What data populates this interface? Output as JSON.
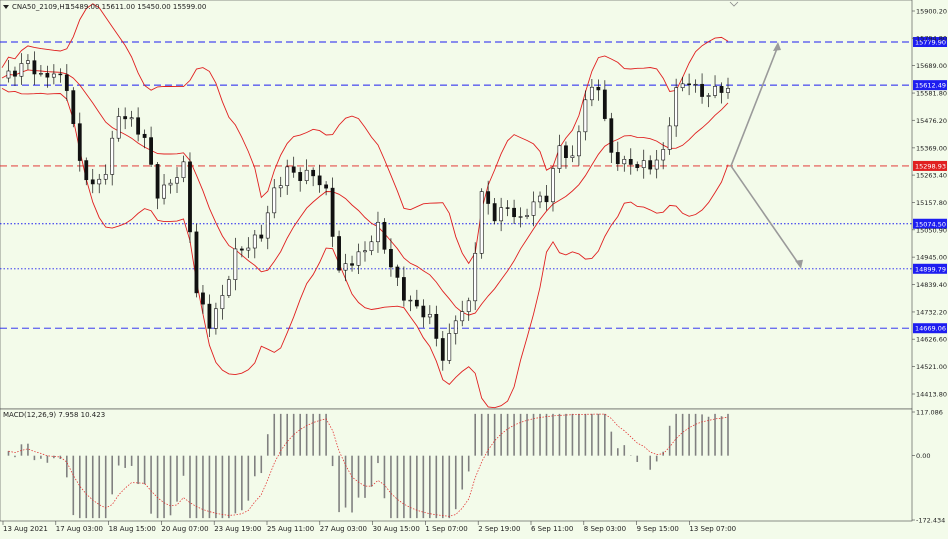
{
  "header": {
    "symbol_line": "CNA50_2109,H1",
    "ohlc": "15489.00 15611.00 15450.00 15599.00"
  },
  "macd": {
    "label": "MACD(12,26,9) 7.958 10.423",
    "y_labels": [
      "117.086",
      "0.00",
      "-172.434"
    ]
  },
  "price_axis": {
    "labels": [
      "15900.20",
      "15794.80",
      "15689.00",
      "15581.80",
      "15476.20",
      "15369.00",
      "15263.40",
      "15157.80",
      "15050.90",
      "14945.00",
      "14839.40",
      "14732.20",
      "14626.60",
      "14521.00",
      "14413.80"
    ]
  },
  "levels": [
    {
      "value": "15779.90",
      "color": "#1d1df0",
      "style": "dashed"
    },
    {
      "value": "15612.49",
      "color": "#1d1df0",
      "style": "dashed"
    },
    {
      "value": "15298.93",
      "color": "#e02020",
      "style": "dashed"
    },
    {
      "value": "15074.50",
      "color": "#1d1df0",
      "style": "dotted"
    },
    {
      "value": "14899.79",
      "color": "#1d1df0",
      "style": "dotted"
    },
    {
      "value": "14669.06",
      "color": "#1d1df0",
      "style": "dashed"
    }
  ],
  "time_axis": {
    "labels": [
      "13 Aug 2021",
      "17 Aug 03:00",
      "18 Aug 15:00",
      "20 Aug 07:00",
      "23 Aug 19:00",
      "25 Aug 11:00",
      "27 Aug 03:00",
      "30 Aug 15:00",
      "1 Sep 07:00",
      "2 Sep 19:00",
      "6 Sep 11:00",
      "8 Sep 03:00",
      "9 Sep 15:00",
      "13 Sep 07:00"
    ]
  },
  "chart_data": {
    "type": "candlestick",
    "symbol": "CNA50_2109",
    "timeframe": "H1",
    "ylim": [
      14413.8,
      15900.2
    ],
    "price_path": [
      [
        0,
        15640
      ],
      [
        2,
        15655
      ],
      [
        4,
        15700
      ],
      [
        6,
        15650
      ],
      [
        8,
        15670
      ],
      [
        10,
        15600
      ],
      [
        12,
        15300
      ],
      [
        14,
        15220
      ],
      [
        16,
        15290
      ],
      [
        18,
        15500
      ],
      [
        20,
        15460
      ],
      [
        22,
        15400
      ],
      [
        24,
        15200
      ],
      [
        26,
        15240
      ],
      [
        28,
        15290
      ],
      [
        30,
        14800
      ],
      [
        32,
        14690
      ],
      [
        34,
        14800
      ],
      [
        36,
        14960
      ],
      [
        38,
        14980
      ],
      [
        40,
        15030
      ],
      [
        42,
        15210
      ],
      [
        44,
        15290
      ],
      [
        46,
        15250
      ],
      [
        48,
        15260
      ],
      [
        50,
        15200
      ],
      [
        52,
        14900
      ],
      [
        54,
        14930
      ],
      [
        56,
        14960
      ],
      [
        58,
        15060
      ],
      [
        60,
        14920
      ],
      [
        62,
        14800
      ],
      [
        64,
        14740
      ],
      [
        66,
        14700
      ],
      [
        68,
        14560
      ],
      [
        70,
        14720
      ],
      [
        72,
        14760
      ],
      [
        74,
        15180
      ],
      [
        76,
        15100
      ],
      [
        78,
        15150
      ],
      [
        80,
        15090
      ],
      [
        82,
        15150
      ],
      [
        84,
        15170
      ],
      [
        86,
        15380
      ],
      [
        88,
        15330
      ],
      [
        90,
        15560
      ],
      [
        92,
        15600
      ],
      [
        94,
        15340
      ],
      [
        96,
        15320
      ],
      [
        98,
        15310
      ],
      [
        100,
        15290
      ],
      [
        102,
        15340
      ],
      [
        104,
        15600
      ],
      [
        106,
        15640
      ],
      [
        108,
        15570
      ],
      [
        110,
        15580
      ],
      [
        112,
        15599
      ]
    ],
    "overlays": [
      "Bollinger Bands"
    ],
    "forecast_arrows": [
      {
        "direction": "up",
        "target": 15779.9
      },
      {
        "direction": "down",
        "target": 14899.79
      }
    ],
    "macd": {
      "params": "12,26,9",
      "macd": 7.958,
      "signal": 10.423,
      "ylim": [
        -172.434,
        117.086
      ]
    }
  }
}
